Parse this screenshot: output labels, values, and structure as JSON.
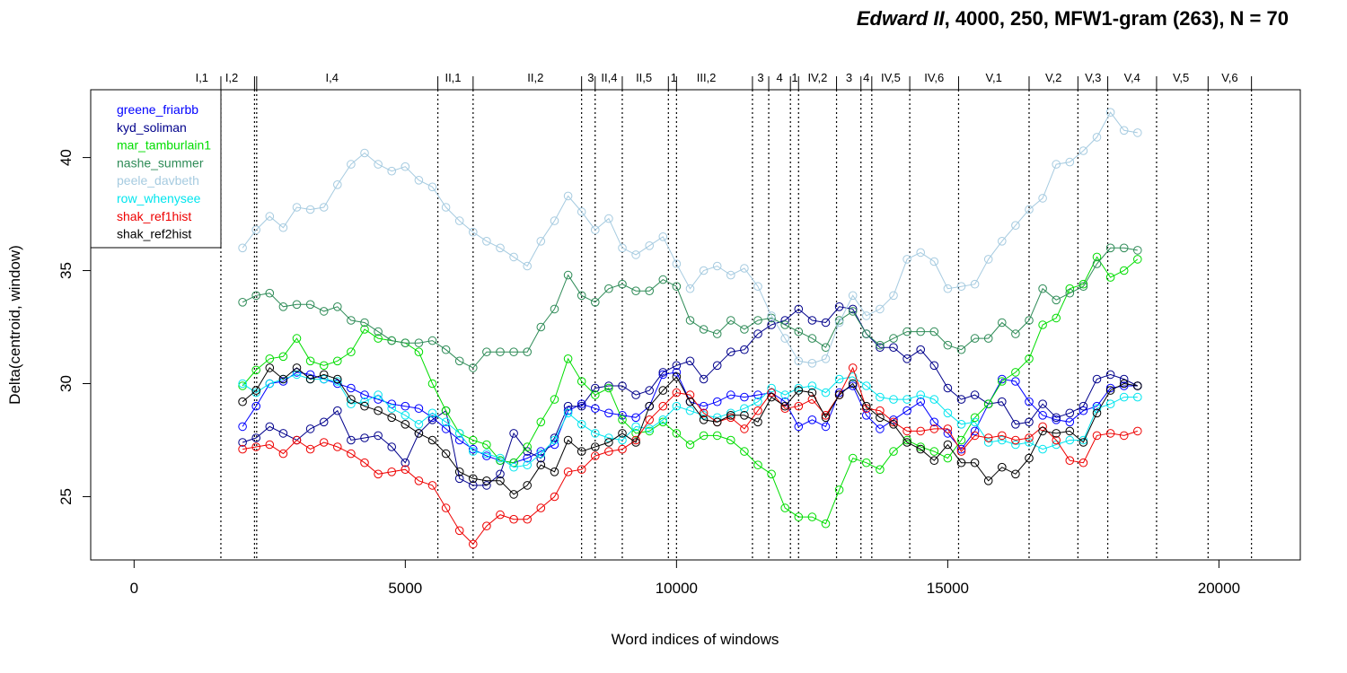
{
  "chart_data": {
    "type": "line",
    "title_italic": "Edward II",
    "title_rest": ", 4000, 250, MFW1-gram (263), N = 70",
    "xlabel": "Word indices of windows",
    "ylabel": "Delta(centroid, window)",
    "xlim": [
      -800,
      21500
    ],
    "ylim": [
      22.2,
      43.0
    ],
    "x_ticks": [
      0,
      5000,
      10000,
      15000,
      20000
    ],
    "x_tick_labels": [
      "0",
      "5000",
      "10000",
      "15000",
      "20000"
    ],
    "y_ticks": [
      25,
      30,
      35,
      40
    ],
    "y_tick_labels": [
      "25",
      "30",
      "35",
      "40"
    ],
    "legend_position": "top-left",
    "grid": false,
    "scene_boundaries": [
      1600,
      2220,
      2260,
      5600,
      6250,
      8250,
      8500,
      9000,
      9850,
      10000,
      11400,
      11700,
      12100,
      12250,
      12950,
      13400,
      13600,
      14300,
      15200,
      16500,
      17400,
      17950,
      18850,
      19800,
      20600
    ],
    "scenes": [
      {
        "label": "I,1",
        "x": 1250
      },
      {
        "label": "I,2",
        "x": 1800
      },
      {
        "label": "I,4",
        "x": 3650
      },
      {
        "label": "II,1",
        "x": 5880
      },
      {
        "label": "II,2",
        "x": 7400
      },
      {
        "label": "3",
        "x": 8420
      },
      {
        "label": "II,4",
        "x": 8760
      },
      {
        "label": "II,5",
        "x": 9400
      },
      {
        "label": "1",
        "x": 9950
      },
      {
        "label": "III,2",
        "x": 10550
      },
      {
        "label": "3",
        "x": 11550
      },
      {
        "label": "4",
        "x": 11900
      },
      {
        "label": "1",
        "x": 12180
      },
      {
        "label": "IV,2",
        "x": 12600
      },
      {
        "label": "3",
        "x": 13180
      },
      {
        "label": "4",
        "x": 13500
      },
      {
        "label": "IV,5",
        "x": 13950
      },
      {
        "label": "IV,6",
        "x": 14750
      },
      {
        "label": "V,1",
        "x": 15850
      },
      {
        "label": "V,2",
        "x": 16950
      },
      {
        "label": "V,3",
        "x": 17680
      },
      {
        "label": "V,4",
        "x": 18400
      },
      {
        "label": "V,5",
        "x": 19300
      },
      {
        "label": "V,6",
        "x": 20200
      }
    ],
    "x": [
      2000,
      2250,
      2500,
      2750,
      3000,
      3250,
      3500,
      3750,
      4000,
      4250,
      4500,
      4750,
      5000,
      5250,
      5500,
      5750,
      6000,
      6250,
      6500,
      6750,
      7000,
      7250,
      7500,
      7750,
      8000,
      8250,
      8500,
      8750,
      9000,
      9250,
      9500,
      9750,
      10000,
      10250,
      10500,
      10750,
      11000,
      11250,
      11500,
      11750,
      12000,
      12250,
      12500,
      12750,
      13000,
      13250,
      13500,
      13750,
      14000,
      14250,
      14500,
      14750,
      15000,
      15250,
      15500,
      15750,
      16000,
      16250,
      16500,
      16750,
      17000,
      17250,
      17500,
      17750,
      18000,
      18250,
      18500
    ],
    "series": [
      {
        "name": "greene_friarbb",
        "color": "#0000ff",
        "values": [
          28.1,
          29.0,
          30.0,
          30.1,
          30.5,
          30.4,
          30.2,
          30.0,
          29.8,
          29.5,
          29.3,
          29.1,
          29.0,
          28.9,
          28.5,
          28.0,
          27.5,
          27.1,
          26.8,
          26.6,
          26.5,
          26.7,
          27.0,
          27.3,
          28.8,
          29.1,
          28.9,
          28.7,
          28.6,
          28.5,
          29.0,
          30.4,
          30.5,
          29.2,
          29.0,
          29.2,
          29.5,
          29.4,
          29.5,
          29.6,
          29.2,
          28.1,
          28.4,
          28.1,
          29.6,
          29.9,
          28.6,
          28.0,
          28.4,
          28.8,
          29.2,
          28.3,
          27.8,
          27.1,
          27.9,
          29.1,
          30.2,
          30.1,
          29.2,
          28.6,
          28.4,
          28.3,
          28.8,
          29.0,
          29.8,
          29.9,
          29.9
        ]
      },
      {
        "name": "kyd_soliman",
        "color": "#00008b",
        "values": [
          27.4,
          27.6,
          28.1,
          27.8,
          27.5,
          28.0,
          28.3,
          28.8,
          27.5,
          27.6,
          27.7,
          27.2,
          26.5,
          27.8,
          28.4,
          28.8,
          25.8,
          25.5,
          25.5,
          26.0,
          27.8,
          27.0,
          26.7,
          27.6,
          29.0,
          29.0,
          29.8,
          29.9,
          29.9,
          29.5,
          29.7,
          30.5,
          30.8,
          31.0,
          30.2,
          30.8,
          31.4,
          31.5,
          32.2,
          32.6,
          32.8,
          33.3,
          32.8,
          32.7,
          33.4,
          33.3,
          32.2,
          31.6,
          31.6,
          31.1,
          31.5,
          30.8,
          29.8,
          29.3,
          29.5,
          29.1,
          29.2,
          28.2,
          28.3,
          29.1,
          28.5,
          28.7,
          29.0,
          30.2,
          30.4,
          30.2,
          29.9
        ]
      },
      {
        "name": "mar_tamburlain1",
        "color": "#00dd00",
        "values": [
          29.9,
          30.6,
          31.1,
          31.2,
          32.0,
          31.0,
          30.8,
          31.0,
          31.4,
          32.4,
          32.0,
          31.9,
          31.8,
          31.4,
          30.0,
          28.8,
          27.8,
          27.5,
          27.3,
          26.6,
          26.5,
          27.2,
          28.3,
          29.3,
          31.1,
          30.1,
          29.5,
          29.8,
          28.4,
          27.8,
          27.9,
          28.3,
          27.8,
          27.3,
          27.7,
          27.7,
          27.5,
          27.0,
          26.4,
          26.0,
          24.5,
          24.1,
          24.1,
          23.8,
          25.3,
          26.7,
          26.5,
          26.2,
          27.0,
          27.5,
          27.2,
          27.0,
          26.7,
          27.5,
          28.5,
          29.1,
          30.1,
          30.5,
          31.1,
          32.6,
          32.9,
          34.2,
          34.4,
          35.6,
          34.7,
          35.0,
          35.5
        ]
      },
      {
        "name": "nashe_summer",
        "color": "#2e8b57",
        "values": [
          33.6,
          33.9,
          34.0,
          33.4,
          33.5,
          33.5,
          33.2,
          33.4,
          32.8,
          32.7,
          32.3,
          31.9,
          31.8,
          31.8,
          31.9,
          31.5,
          31.0,
          30.7,
          31.4,
          31.4,
          31.4,
          31.4,
          32.5,
          33.3,
          34.8,
          33.9,
          33.6,
          34.2,
          34.4,
          34.1,
          34.1,
          34.6,
          34.3,
          32.8,
          32.4,
          32.2,
          32.8,
          32.4,
          32.8,
          32.9,
          32.6,
          32.3,
          32.0,
          31.6,
          32.8,
          33.2,
          32.2,
          31.7,
          32.0,
          32.3,
          32.3,
          32.3,
          31.7,
          31.5,
          32.0,
          32.0,
          32.7,
          32.2,
          32.8,
          34.2,
          33.7,
          34.0,
          34.3,
          35.3,
          36.0,
          36.0,
          35.9
        ]
      },
      {
        "name": "peele_davbeth",
        "color": "#a6cbe0",
        "values": [
          36.0,
          36.8,
          37.4,
          36.9,
          37.8,
          37.7,
          37.8,
          38.8,
          39.7,
          40.2,
          39.7,
          39.4,
          39.6,
          39.0,
          38.7,
          37.8,
          37.2,
          36.7,
          36.3,
          36.0,
          35.6,
          35.2,
          36.3,
          37.2,
          38.3,
          37.6,
          36.8,
          37.3,
          36.0,
          35.7,
          36.1,
          36.5,
          35.3,
          34.2,
          35.0,
          35.2,
          34.8,
          35.1,
          34.3,
          33.0,
          32.0,
          31.0,
          30.9,
          31.1,
          32.7,
          33.9,
          33.0,
          33.3,
          33.9,
          35.5,
          35.8,
          35.4,
          34.2,
          34.3,
          34.4,
          35.5,
          36.3,
          37.0,
          37.7,
          38.2,
          39.7,
          39.8,
          40.3,
          40.9,
          42.0,
          41.2,
          41.1
        ]
      },
      {
        "name": "row_whenysee",
        "color": "#00e5ee",
        "values": [
          30.0,
          29.6,
          30.0,
          30.2,
          30.4,
          30.2,
          30.2,
          30.1,
          29.1,
          29.2,
          29.5,
          28.9,
          28.6,
          28.2,
          28.7,
          28.3,
          27.8,
          27.0,
          26.9,
          26.7,
          26.3,
          26.4,
          26.9,
          27.5,
          28.7,
          28.2,
          27.8,
          27.6,
          27.5,
          28.1,
          28.0,
          28.4,
          29.0,
          28.8,
          28.6,
          28.5,
          28.7,
          28.9,
          29.2,
          29.8,
          29.5,
          29.8,
          29.9,
          29.6,
          30.2,
          30.3,
          29.9,
          29.4,
          29.3,
          29.3,
          29.5,
          29.3,
          28.7,
          28.2,
          28.3,
          27.4,
          27.5,
          27.3,
          27.4,
          27.1,
          27.3,
          27.5,
          27.5,
          28.9,
          29.1,
          29.4,
          29.4
        ]
      },
      {
        "name": "shak_ref1hist",
        "color": "#ee0000",
        "values": [
          27.1,
          27.2,
          27.3,
          26.9,
          27.5,
          27.1,
          27.4,
          27.2,
          26.9,
          26.5,
          26.0,
          26.1,
          26.2,
          25.7,
          25.5,
          24.5,
          23.5,
          22.9,
          23.7,
          24.2,
          24.0,
          24.0,
          24.5,
          25.0,
          26.1,
          26.2,
          26.8,
          27.0,
          27.1,
          27.5,
          28.4,
          29.0,
          29.6,
          29.5,
          28.7,
          28.3,
          28.5,
          28.0,
          28.8,
          29.6,
          28.9,
          29.0,
          29.3,
          28.6,
          29.5,
          30.7,
          28.9,
          28.8,
          28.3,
          27.9,
          27.9,
          28.0,
          28.0,
          27.0,
          27.7,
          27.6,
          27.7,
          27.5,
          27.6,
          28.1,
          27.5,
          26.6,
          26.5,
          27.7,
          27.8,
          27.7,
          27.9
        ]
      },
      {
        "name": "shak_ref2hist",
        "color": "#000000",
        "values": [
          29.2,
          29.7,
          30.7,
          30.2,
          30.7,
          30.2,
          30.4,
          30.2,
          29.3,
          29.0,
          28.8,
          28.5,
          28.2,
          27.8,
          27.5,
          26.9,
          26.1,
          25.8,
          25.7,
          25.7,
          25.1,
          25.5,
          26.4,
          26.1,
          27.5,
          27.0,
          27.2,
          27.4,
          27.8,
          27.4,
          29.0,
          29.7,
          30.3,
          29.2,
          28.4,
          28.3,
          28.6,
          28.6,
          28.3,
          29.4,
          29.0,
          29.7,
          29.6,
          28.5,
          29.5,
          30.0,
          29.0,
          28.5,
          28.2,
          27.4,
          27.1,
          26.6,
          27.3,
          26.5,
          26.5,
          25.7,
          26.3,
          26.0,
          26.7,
          27.9,
          27.8,
          27.9,
          27.4,
          28.7,
          29.7,
          30.0,
          29.9
        ]
      }
    ]
  }
}
